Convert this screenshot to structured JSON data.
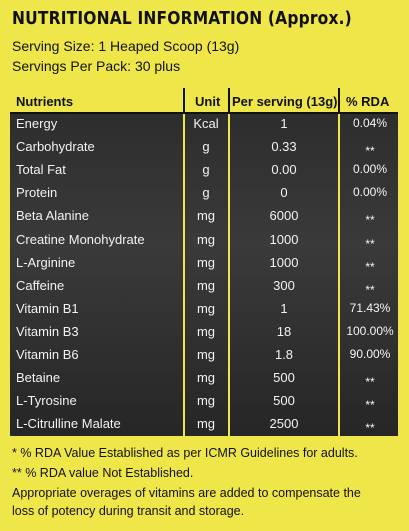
{
  "header": {
    "title": "NUTRITIONAL INFORMATION (Approx.)",
    "serving_size": "Serving Size: 1 Heaped Scoop (13g)",
    "servings_per_pack": "Servings Per Pack: 30 plus"
  },
  "table": {
    "columns": [
      "Nutrients",
      "Unit",
      "Per serving (13g)",
      "% RDA"
    ],
    "rows": [
      [
        "Energy",
        "Kcal",
        "1",
        "0.04%"
      ],
      [
        "Carbohydrate",
        "g",
        "0.33",
        "**"
      ],
      [
        "Total Fat",
        "g",
        "0.00",
        "0.00%"
      ],
      [
        "Protein",
        "g",
        "0",
        "0.00%"
      ],
      [
        "Beta Alanine",
        "mg",
        "6000",
        "**"
      ],
      [
        "Creatine Monohydrate",
        "mg",
        "1000",
        "**"
      ],
      [
        "L-Arginine",
        "mg",
        "1000",
        "**"
      ],
      [
        "Caffeine",
        "mg",
        "300",
        "**"
      ],
      [
        "Vitamin B1",
        "mg",
        "1",
        "71.43%"
      ],
      [
        "Vitamin B3",
        "mg",
        "18",
        "100.00%"
      ],
      [
        "Vitamin B6",
        "mg",
        "1.8",
        "90.00%"
      ],
      [
        "Betaine",
        "mg",
        "500",
        "**"
      ],
      [
        "L-Tyrosine",
        "mg",
        "500",
        "**"
      ],
      [
        "L-Citrulline Malate",
        "mg",
        "2500",
        "**"
      ]
    ]
  },
  "footnotes": [
    "* % RDA Value Established as per ICMR Guidelines for adults.",
    "** % RDA value Not Established.",
    "Appropriate overages of vitamins are added to compensate the",
    "loss of potency during transit and storage."
  ]
}
